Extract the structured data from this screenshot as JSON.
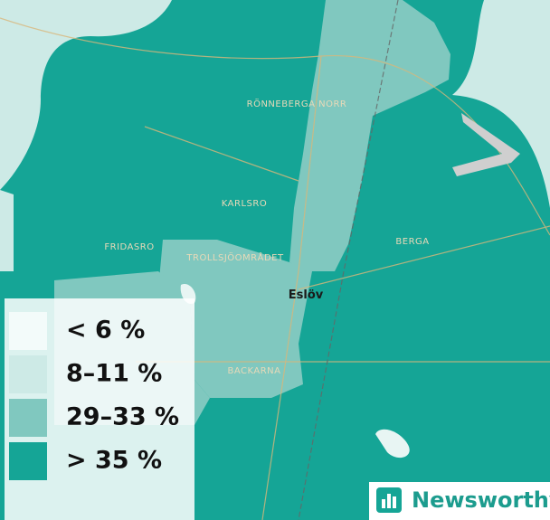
{
  "map": {
    "places": [
      "RÖNNEBERGA NORR",
      "KARLSRO",
      "FRIDASRO",
      "TROLLSJÖOMRÅDET",
      "BERGA",
      "Eslöv",
      "BACKARNA"
    ],
    "legend": [
      {
        "label": "< 6 %",
        "color": "#f3fbfa"
      },
      {
        "label": "8–11 %",
        "color": "#cdeae6"
      },
      {
        "label": "29–33 %",
        "color": "#80c8bf"
      },
      {
        "label": "> 35 %",
        "color": "#15a596"
      }
    ],
    "logo": "Newsworthy"
  }
}
